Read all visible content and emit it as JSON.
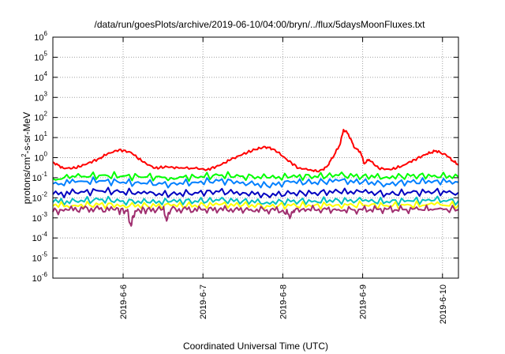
{
  "chart_data": {
    "type": "line",
    "title": "/data/run/goesPlots/archive/2019-06-10/04:00/bryn/../flux/5daysMoonFluxes.txt",
    "xlabel": "Coordinated Universal Time (UTC)",
    "ylabel": "protons/cm2-s-sr-MeV",
    "ylabel_parts": [
      "protons/cm",
      "2",
      "-s-sr-MeV"
    ],
    "y_scale": "log",
    "ylim": [
      1e-06,
      1000000.0
    ],
    "xlim": [
      5.12,
      10.2
    ],
    "x_unit": "day of 2019-06",
    "grid": true,
    "legend": "none",
    "x_ticks": [
      {
        "x": 6,
        "label": "2019-6-6"
      },
      {
        "x": 7,
        "label": "2019-6-7"
      },
      {
        "x": 8,
        "label": "2019-6-8"
      },
      {
        "x": 9,
        "label": "2019-6-9"
      },
      {
        "x": 10,
        "label": "2019-6-10"
      }
    ],
    "y_ticks": [
      {
        "exp": "6",
        "value": 1000000
      },
      {
        "exp": "5",
        "value": 100000
      },
      {
        "exp": "4",
        "value": 10000
      },
      {
        "exp": "3",
        "value": 1000
      },
      {
        "exp": "2",
        "value": 100
      },
      {
        "exp": "1",
        "value": 10
      },
      {
        "exp": "0",
        "value": 1
      },
      {
        "exp": "-1",
        "value": 0.1
      },
      {
        "exp": "-2",
        "value": 0.01
      },
      {
        "exp": "-3",
        "value": 0.001
      },
      {
        "exp": "-4",
        "value": 0.0001
      },
      {
        "exp": "-5",
        "value": 1e-05
      },
      {
        "exp": "-6",
        "value": 1e-06
      }
    ],
    "y_tick_base": "10",
    "series": [
      {
        "color": "#ff0000",
        "x": [
          5.12,
          5.25,
          5.4,
          5.55,
          5.7,
          5.8,
          5.95,
          6.1,
          6.25,
          6.4,
          6.55,
          6.7,
          6.9,
          7.05,
          7.2,
          7.35,
          7.5,
          7.65,
          7.78,
          7.9,
          8.05,
          8.2,
          8.35,
          8.45,
          8.55,
          8.65,
          8.72,
          8.76,
          8.82,
          8.9,
          8.97,
          9.02,
          9.08,
          9.2,
          9.35,
          9.5,
          9.65,
          9.8,
          9.92,
          10.05,
          10.15,
          10.2
        ],
        "y": [
          0.6,
          0.3,
          0.3,
          0.5,
          0.9,
          1.5,
          2.5,
          1.8,
          0.6,
          0.3,
          0.35,
          0.3,
          0.3,
          0.25,
          0.4,
          0.8,
          1.5,
          2.5,
          3.5,
          2.5,
          0.8,
          0.3,
          0.25,
          0.2,
          0.35,
          1.5,
          5,
          25,
          15,
          3,
          2,
          0.5,
          0.8,
          0.3,
          0.25,
          0.4,
          0.8,
          1.5,
          2.2,
          1.3,
          0.6,
          0.45
        ]
      },
      {
        "color": "#00ff00",
        "x": [
          5.12,
          5.4,
          5.7,
          6.0,
          6.3,
          6.6,
          6.9,
          7.2,
          7.5,
          7.8,
          8.1,
          8.4,
          8.7,
          9.0,
          9.3,
          9.6,
          9.9,
          10.2
        ],
        "y": [
          0.09,
          0.11,
          0.13,
          0.12,
          0.11,
          0.1,
          0.11,
          0.13,
          0.12,
          0.1,
          0.11,
          0.12,
          0.13,
          0.12,
          0.11,
          0.12,
          0.13,
          0.11
        ]
      },
      {
        "color": "#0080ff",
        "x": [
          5.12,
          5.4,
          5.7,
          6.0,
          6.3,
          6.6,
          6.9,
          7.2,
          7.5,
          7.8,
          8.1,
          8.4,
          8.7,
          9.0,
          9.3,
          9.6,
          9.9,
          10.2
        ],
        "y": [
          0.05,
          0.06,
          0.07,
          0.06,
          0.05,
          0.05,
          0.06,
          0.07,
          0.06,
          0.04,
          0.06,
          0.06,
          0.07,
          0.06,
          0.05,
          0.06,
          0.07,
          0.06
        ]
      },
      {
        "color": "#0000c0",
        "x": [
          5.12,
          5.4,
          5.7,
          6.0,
          6.3,
          6.6,
          6.9,
          7.2,
          7.5,
          7.8,
          8.1,
          8.4,
          8.7,
          9.0,
          9.3,
          9.6,
          9.9,
          10.2
        ],
        "y": [
          0.015,
          0.018,
          0.022,
          0.02,
          0.016,
          0.015,
          0.018,
          0.02,
          0.018,
          0.014,
          0.016,
          0.018,
          0.02,
          0.019,
          0.016,
          0.018,
          0.02,
          0.018
        ]
      },
      {
        "color": "#00c0c0",
        "x": [
          5.12,
          5.4,
          5.7,
          6.0,
          6.3,
          6.6,
          6.9,
          7.2,
          7.5,
          7.8,
          8.1,
          8.4,
          8.7,
          9.0,
          9.3,
          9.6,
          9.9,
          10.2
        ],
        "y": [
          0.006,
          0.007,
          0.008,
          0.007,
          0.006,
          0.0065,
          0.007,
          0.0075,
          0.007,
          0.006,
          0.0065,
          0.007,
          0.0075,
          0.007,
          0.0065,
          0.007,
          0.0075,
          0.007
        ]
      },
      {
        "color": "#ffff00",
        "x": [
          5.12,
          5.4,
          5.7,
          6.0,
          6.3,
          6.6,
          6.9,
          7.2,
          7.5,
          7.8,
          8.1,
          8.4,
          8.7,
          9.0,
          9.3,
          9.6,
          9.9,
          10.2
        ],
        "y": [
          0.004,
          0.0042,
          0.0045,
          0.0043,
          0.004,
          0.0041,
          0.0043,
          0.0045,
          0.0043,
          0.004,
          0.0041,
          0.0043,
          0.0045,
          0.0043,
          0.0041,
          0.0043,
          0.0045,
          0.0043
        ]
      },
      {
        "color": "#a03070",
        "x": [
          5.12,
          5.3,
          5.5,
          5.7,
          5.9,
          6.05,
          6.1,
          6.15,
          6.3,
          6.5,
          6.55,
          6.6,
          6.8,
          7.0,
          7.2,
          7.4,
          7.6,
          7.8,
          8.0,
          8.1,
          8.15,
          8.3,
          8.5,
          8.7,
          8.9,
          9.1,
          9.3,
          9.5,
          9.7,
          9.9,
          10.2
        ],
        "y": [
          0.002,
          0.0025,
          0.0028,
          0.0027,
          0.0025,
          0.0022,
          0.0004,
          0.0022,
          0.0026,
          0.0027,
          0.0008,
          0.0026,
          0.0026,
          0.0025,
          0.0026,
          0.0027,
          0.0026,
          0.0025,
          0.0024,
          0.0012,
          0.0024,
          0.0026,
          0.0027,
          0.0026,
          0.0025,
          0.0026,
          0.0027,
          0.0026,
          0.0026,
          0.0027,
          0.0026
        ]
      }
    ]
  }
}
